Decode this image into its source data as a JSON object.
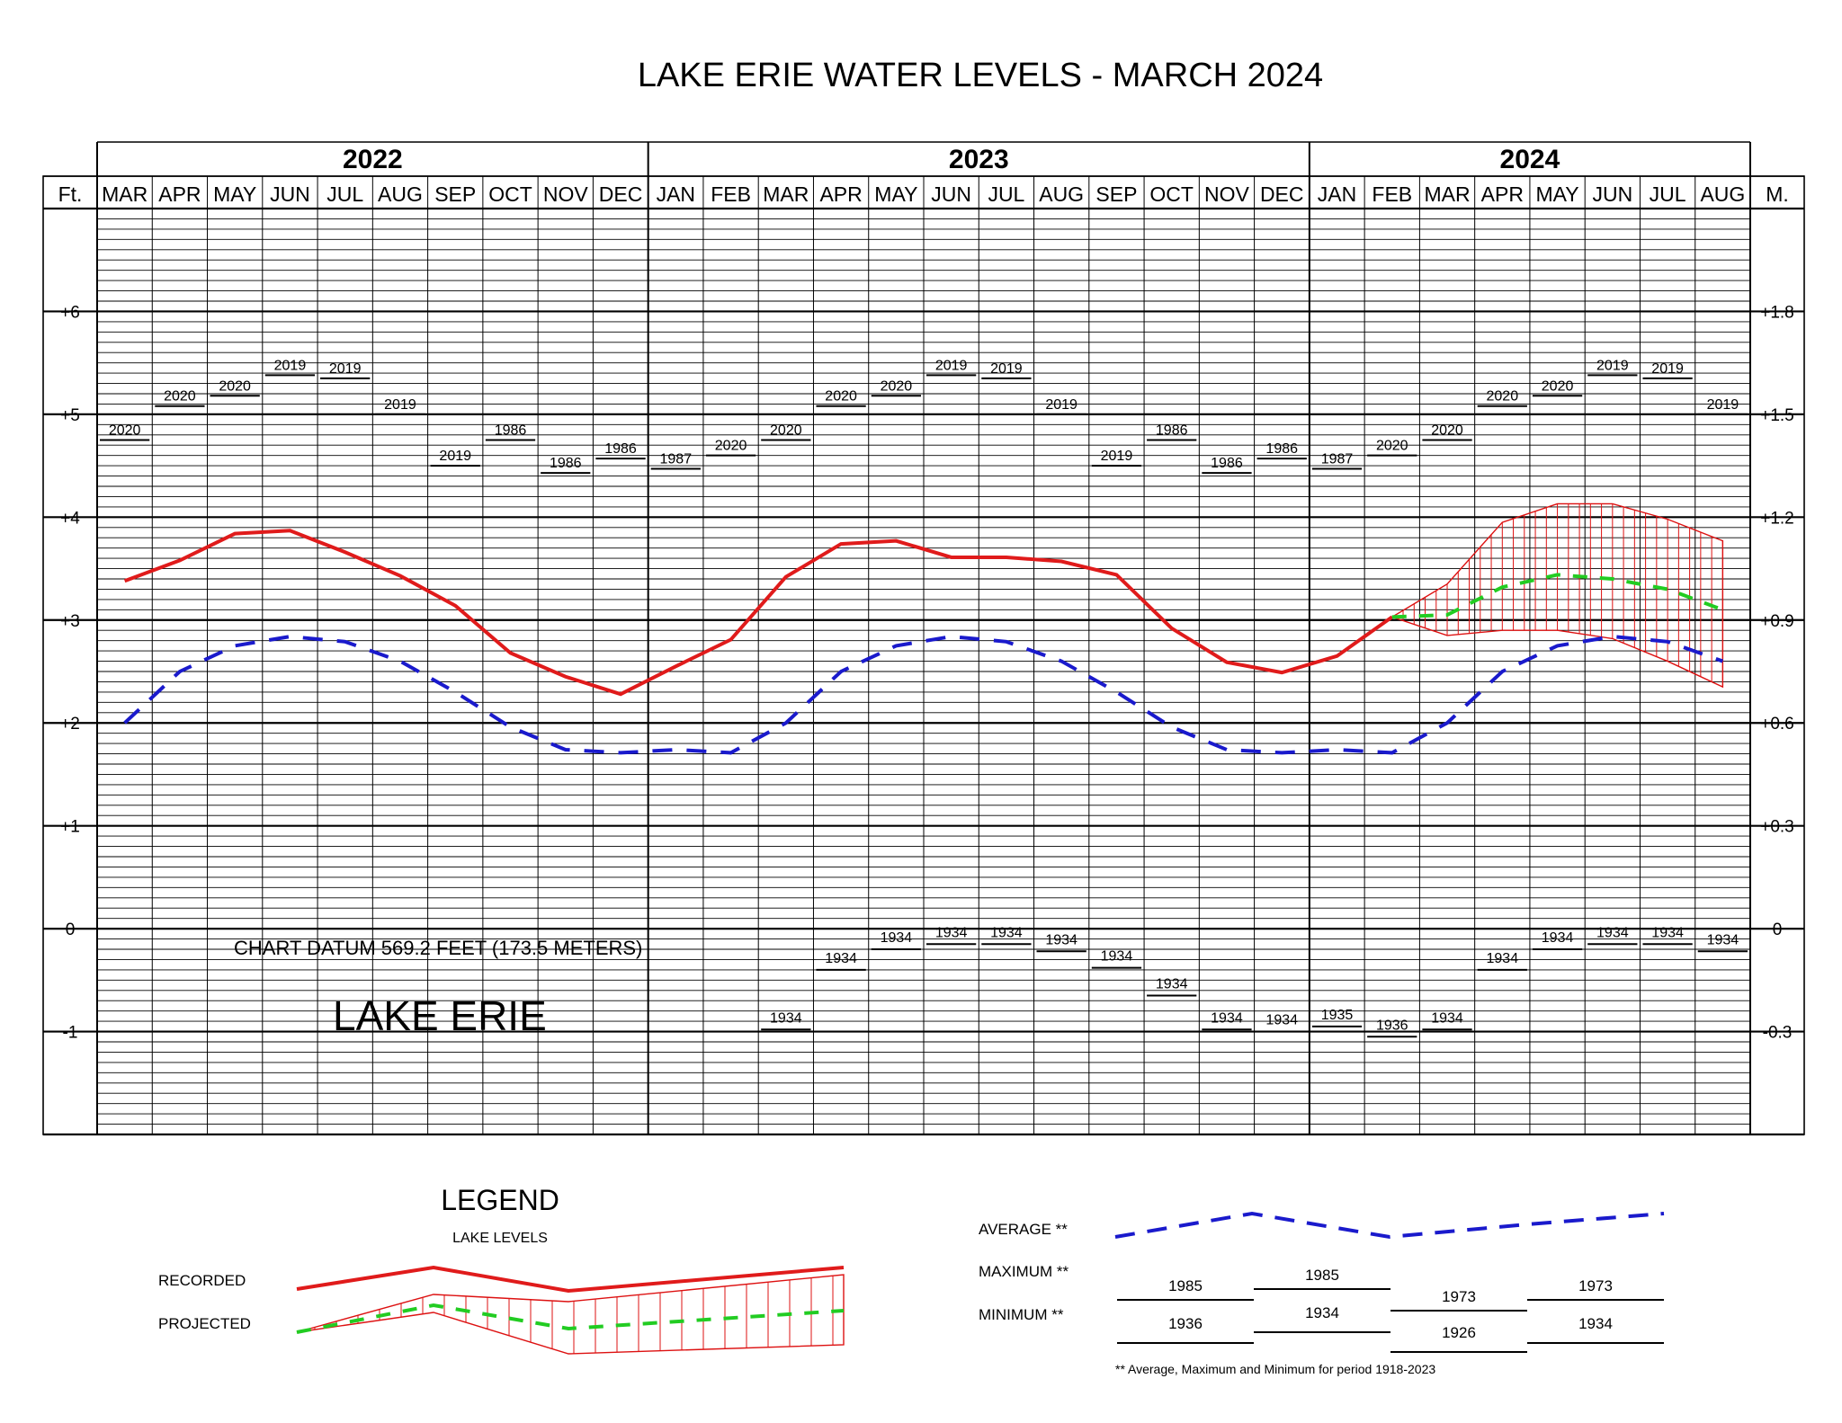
{
  "chart_data": {
    "type": "line",
    "title": "LAKE ERIE WATER LEVELS - MARCH 2024",
    "left_unit": "Ft.",
    "right_unit": "M.",
    "years": [
      {
        "label": "2022",
        "start": 0,
        "count": 10
      },
      {
        "label": "2023",
        "start": 10,
        "count": 12
      },
      {
        "label": "2024",
        "start": 22,
        "count": 8
      }
    ],
    "categories": [
      "MAR",
      "APR",
      "MAY",
      "JUN",
      "JUL",
      "AUG",
      "SEP",
      "OCT",
      "NOV",
      "DEC",
      "JAN",
      "FEB",
      "MAR",
      "APR",
      "MAY",
      "JUN",
      "JUL",
      "AUG",
      "SEP",
      "OCT",
      "NOV",
      "DEC",
      "JAN",
      "FEB",
      "MAR",
      "APR",
      "MAY",
      "JUN",
      "JUL",
      "AUG"
    ],
    "ylim": [
      -2,
      7
    ],
    "left_ticks": [
      {
        "v": 6,
        "label": "+6"
      },
      {
        "v": 5,
        "label": "+5"
      },
      {
        "v": 4,
        "label": "+4"
      },
      {
        "v": 3,
        "label": "+3"
      },
      {
        "v": 2,
        "label": "+2"
      },
      {
        "v": 1,
        "label": "+1"
      },
      {
        "v": 0,
        "label": "0"
      },
      {
        "v": -1,
        "label": "-1"
      }
    ],
    "right_ticks": [
      {
        "v": 6,
        "label": "+1.8"
      },
      {
        "v": 5,
        "label": "+1.5"
      },
      {
        "v": 4,
        "label": "+1.2"
      },
      {
        "v": 3,
        "label": "+0.9"
      },
      {
        "v": 2,
        "label": "+0.6"
      },
      {
        "v": 1,
        "label": "+0.3"
      },
      {
        "v": 0,
        "label": "0"
      },
      {
        "v": -1,
        "label": "-0.3"
      }
    ],
    "recorded": {
      "name": "RECORDED",
      "color": "#e01b1b",
      "values": [
        3.38,
        3.58,
        3.84,
        3.87,
        3.66,
        3.43,
        3.14,
        2.68,
        2.45,
        2.28,
        2.55,
        2.81,
        3.42,
        3.74,
        3.77,
        3.61,
        3.61,
        3.57,
        3.44,
        2.92,
        2.59,
        2.49,
        2.65,
        3.03
      ]
    },
    "average": {
      "name": "AVERAGE **",
      "color": "#1a1acc",
      "values": [
        2.0,
        2.5,
        2.75,
        2.84,
        2.79,
        2.6,
        2.3,
        1.96,
        1.74,
        1.71,
        1.74,
        1.71,
        2.0,
        2.5,
        2.75,
        2.84,
        2.79,
        2.6,
        2.3,
        1.96,
        1.74,
        1.71,
        1.74,
        1.71,
        2.0,
        2.5,
        2.75,
        2.84,
        2.79,
        2.6
      ]
    },
    "projected": {
      "name": "PROJECTED",
      "color": "#22cc22",
      "start": 23,
      "values": [
        3.03,
        3.05,
        3.32,
        3.44,
        3.4,
        3.3,
        3.1
      ],
      "upper": [
        3.03,
        3.35,
        3.95,
        4.13,
        4.13,
        3.98,
        3.77
      ],
      "lower": [
        3.03,
        2.85,
        2.9,
        2.9,
        2.82,
        2.6,
        2.35
      ]
    },
    "maxima": [
      {
        "label": "2020",
        "v": 4.75
      },
      {
        "label": "2020",
        "v": 5.08
      },
      {
        "label": "2020",
        "v": 5.18
      },
      {
        "label": "2019",
        "v": 5.38
      },
      {
        "label": "2019",
        "v": 5.35
      },
      {
        "label": "2019",
        "v": 5.0
      },
      {
        "label": "2019",
        "v": 4.5
      },
      {
        "label": "1986",
        "v": 4.75
      },
      {
        "label": "1986",
        "v": 4.43
      },
      {
        "label": "1986",
        "v": 4.57
      },
      {
        "label": "1987",
        "v": 4.47
      },
      {
        "label": "2020",
        "v": 4.6
      },
      {
        "label": "2020",
        "v": 4.75
      },
      {
        "label": "2020",
        "v": 5.08
      },
      {
        "label": "2020",
        "v": 5.18
      },
      {
        "label": "2019",
        "v": 5.38
      },
      {
        "label": "2019",
        "v": 5.35
      },
      {
        "label": "2019",
        "v": 5.0
      },
      {
        "label": "2019",
        "v": 4.5
      },
      {
        "label": "1986",
        "v": 4.75
      },
      {
        "label": "1986",
        "v": 4.43
      },
      {
        "label": "1986",
        "v": 4.57
      },
      {
        "label": "1987",
        "v": 4.47
      },
      {
        "label": "2020",
        "v": 4.6
      },
      {
        "label": "2020",
        "v": 4.75
      },
      {
        "label": "2020",
        "v": 5.08
      },
      {
        "label": "2020",
        "v": 5.18
      },
      {
        "label": "2019",
        "v": 5.38
      },
      {
        "label": "2019",
        "v": 5.35
      },
      {
        "label": "2019",
        "v": 5.0
      }
    ],
    "minima": [
      {
        "i": 12,
        "label": "1934",
        "v": -0.98
      },
      {
        "i": 13,
        "label": "1934",
        "v": -0.4
      },
      {
        "i": 14,
        "label": "1934",
        "v": -0.2
      },
      {
        "i": 15,
        "label": "1934",
        "v": -0.15
      },
      {
        "i": 16,
        "label": "1934",
        "v": -0.15
      },
      {
        "i": 17,
        "label": "1934",
        "v": -0.22
      },
      {
        "i": 18,
        "label": "1934",
        "v": -0.38
      },
      {
        "i": 19,
        "label": "1934",
        "v": -0.65
      },
      {
        "i": 20,
        "label": "1934",
        "v": -0.98
      },
      {
        "i": 21,
        "label": "1934",
        "v": -1.0
      },
      {
        "i": 22,
        "label": "1935",
        "v": -0.95
      },
      {
        "i": 23,
        "label": "1936",
        "v": -1.05
      },
      {
        "i": 24,
        "label": "1934",
        "v": -0.98
      },
      {
        "i": 25,
        "label": "1934",
        "v": -0.4
      },
      {
        "i": 26,
        "label": "1934",
        "v": -0.2
      },
      {
        "i": 27,
        "label": "1934",
        "v": -0.15
      },
      {
        "i": 28,
        "label": "1934",
        "v": -0.15
      },
      {
        "i": 29,
        "label": "1934",
        "v": -0.22
      }
    ],
    "datum_note": "CHART DATUM  569.2 FEET (173.5 METERS)",
    "lake_name": "LAKE ERIE"
  },
  "legend": {
    "title": "LEGEND",
    "subtitle": "LAKE LEVELS",
    "recorded_label": "RECORDED",
    "projected_label": "PROJECTED",
    "average_label": "AVERAGE **",
    "maximum_label": "MAXIMUM **",
    "minimum_label": "MINIMUM **",
    "max_years": [
      "1985",
      "1985",
      "1973",
      "1973"
    ],
    "min_years": [
      "1936",
      "1934",
      "1926",
      "1934"
    ],
    "footnote": "** Average, Maximum and Minimum for period 1918-2023"
  }
}
